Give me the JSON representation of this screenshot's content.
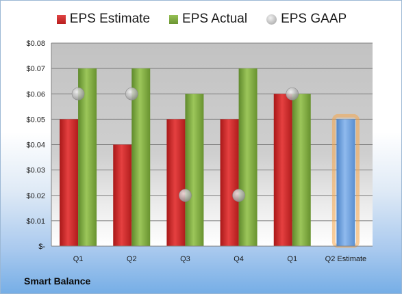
{
  "legend": {
    "estimate": "EPS Estimate",
    "actual": "EPS Actual",
    "gaap": "EPS GAAP"
  },
  "company": "Smart Balance",
  "colors": {
    "estimate": "#c62828",
    "actual": "#7ea63e",
    "gaap": "#b8b8b8",
    "forecast": "#6d9fdc",
    "forecast_glow": "#f5a54a"
  },
  "chart_data": {
    "type": "bar",
    "categories": [
      "Q1",
      "Q2",
      "Q3",
      "Q4",
      "Q1",
      "Q2 Estimate"
    ],
    "series": [
      {
        "name": "EPS Estimate",
        "values": [
          0.05,
          0.04,
          0.05,
          0.05,
          0.06,
          0.05
        ]
      },
      {
        "name": "EPS Actual",
        "values": [
          0.07,
          0.07,
          0.06,
          0.07,
          0.06,
          null
        ]
      },
      {
        "name": "EPS GAAP",
        "values": [
          0.06,
          0.06,
          0.02,
          0.02,
          0.06,
          null
        ]
      }
    ],
    "ylim": [
      0,
      0.08
    ],
    "yticks": [
      0,
      0.01,
      0.02,
      0.03,
      0.04,
      0.05,
      0.06,
      0.07,
      0.08
    ],
    "ytick_labels": [
      "$-",
      "$0.01",
      "$0.02",
      "$0.03",
      "$0.04",
      "$0.05",
      "$0.06",
      "$0.07",
      "$0.08"
    ],
    "grid": true,
    "legend_position": "top"
  }
}
